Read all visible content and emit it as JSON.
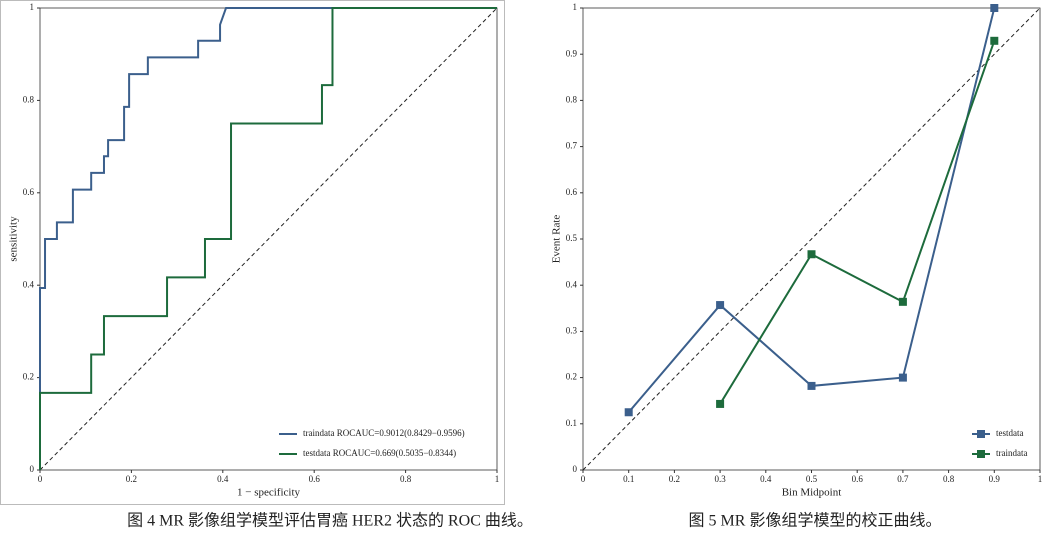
{
  "chart_data": [
    {
      "type": "line",
      "caption": "图 4 MR 影像组学模型评估胃癌 HER2 状态的 ROC 曲线。",
      "x_label": "1 − specificity",
      "y_label": "sensitivity",
      "xlim": [
        0,
        1
      ],
      "ylim": [
        0,
        1
      ],
      "xticks": [
        0,
        0.2,
        0.4,
        0.6,
        0.8,
        1
      ],
      "yticks": [
        0,
        0.2,
        0.4,
        0.6,
        0.8,
        1
      ],
      "markers": false,
      "legend": "lower right",
      "series": [
        {
          "name": "traindata ROCAUC=0.9012(0.8429−0.9596)",
          "color": "#3b5f8c",
          "x": [
            0,
            0,
            0.011,
            0.011,
            0.037,
            0.037,
            0.072,
            0.072,
            0.112,
            0.112,
            0.14,
            0.14,
            0.149,
            0.149,
            0.184,
            0.184,
            0.195,
            0.195,
            0.236,
            0.236,
            0.346,
            0.346,
            0.394,
            0.394,
            0.407,
            1
          ],
          "values": [
            0,
            0.394,
            0.394,
            0.5,
            0.5,
            0.536,
            0.536,
            0.607,
            0.607,
            0.643,
            0.643,
            0.679,
            0.679,
            0.714,
            0.714,
            0.786,
            0.786,
            0.857,
            0.857,
            0.893,
            0.893,
            0.929,
            0.929,
            0.964,
            1,
            1
          ]
        },
        {
          "name": "testdata ROCAUC=0.669(0.5035−0.8344)",
          "color": "#1d6b3c",
          "x": [
            0,
            0,
            0.112,
            0.112,
            0.14,
            0.14,
            0.278,
            0.278,
            0.361,
            0.361,
            0.418,
            0.418,
            0.617,
            0.617,
            0.64,
            0.64,
            1
          ],
          "values": [
            0,
            0.167,
            0.167,
            0.25,
            0.25,
            0.333,
            0.333,
            0.417,
            0.417,
            0.5,
            0.5,
            0.75,
            0.75,
            0.833,
            0.833,
            1,
            1
          ]
        }
      ]
    },
    {
      "type": "line",
      "caption": "图 5 MR 影像组学模型的校正曲线。",
      "x_label": "Bin Midpoint",
      "y_label": "Event Rate",
      "xlim": [
        0,
        1
      ],
      "ylim": [
        0,
        1
      ],
      "xticks": [
        0,
        0.1,
        0.2,
        0.3,
        0.4,
        0.5,
        0.6,
        0.7,
        0.8,
        0.9,
        1
      ],
      "yticks": [
        0,
        0.1,
        0.2,
        0.3,
        0.4,
        0.5,
        0.6,
        0.7,
        0.8,
        0.9,
        1
      ],
      "markers": true,
      "legend": "lower right",
      "series": [
        {
          "name": "testdata",
          "color": "#3b5f8c",
          "x": [
            0.1,
            0.3,
            0.5,
            0.7,
            0.9
          ],
          "values": [
            0.125,
            0.357,
            0.182,
            0.2,
            1
          ]
        },
        {
          "name": "traindata",
          "color": "#1d6b3c",
          "x": [
            0.3,
            0.5,
            0.7,
            0.9
          ],
          "values": [
            0.143,
            0.467,
            0.364,
            0.929
          ]
        }
      ]
    }
  ]
}
